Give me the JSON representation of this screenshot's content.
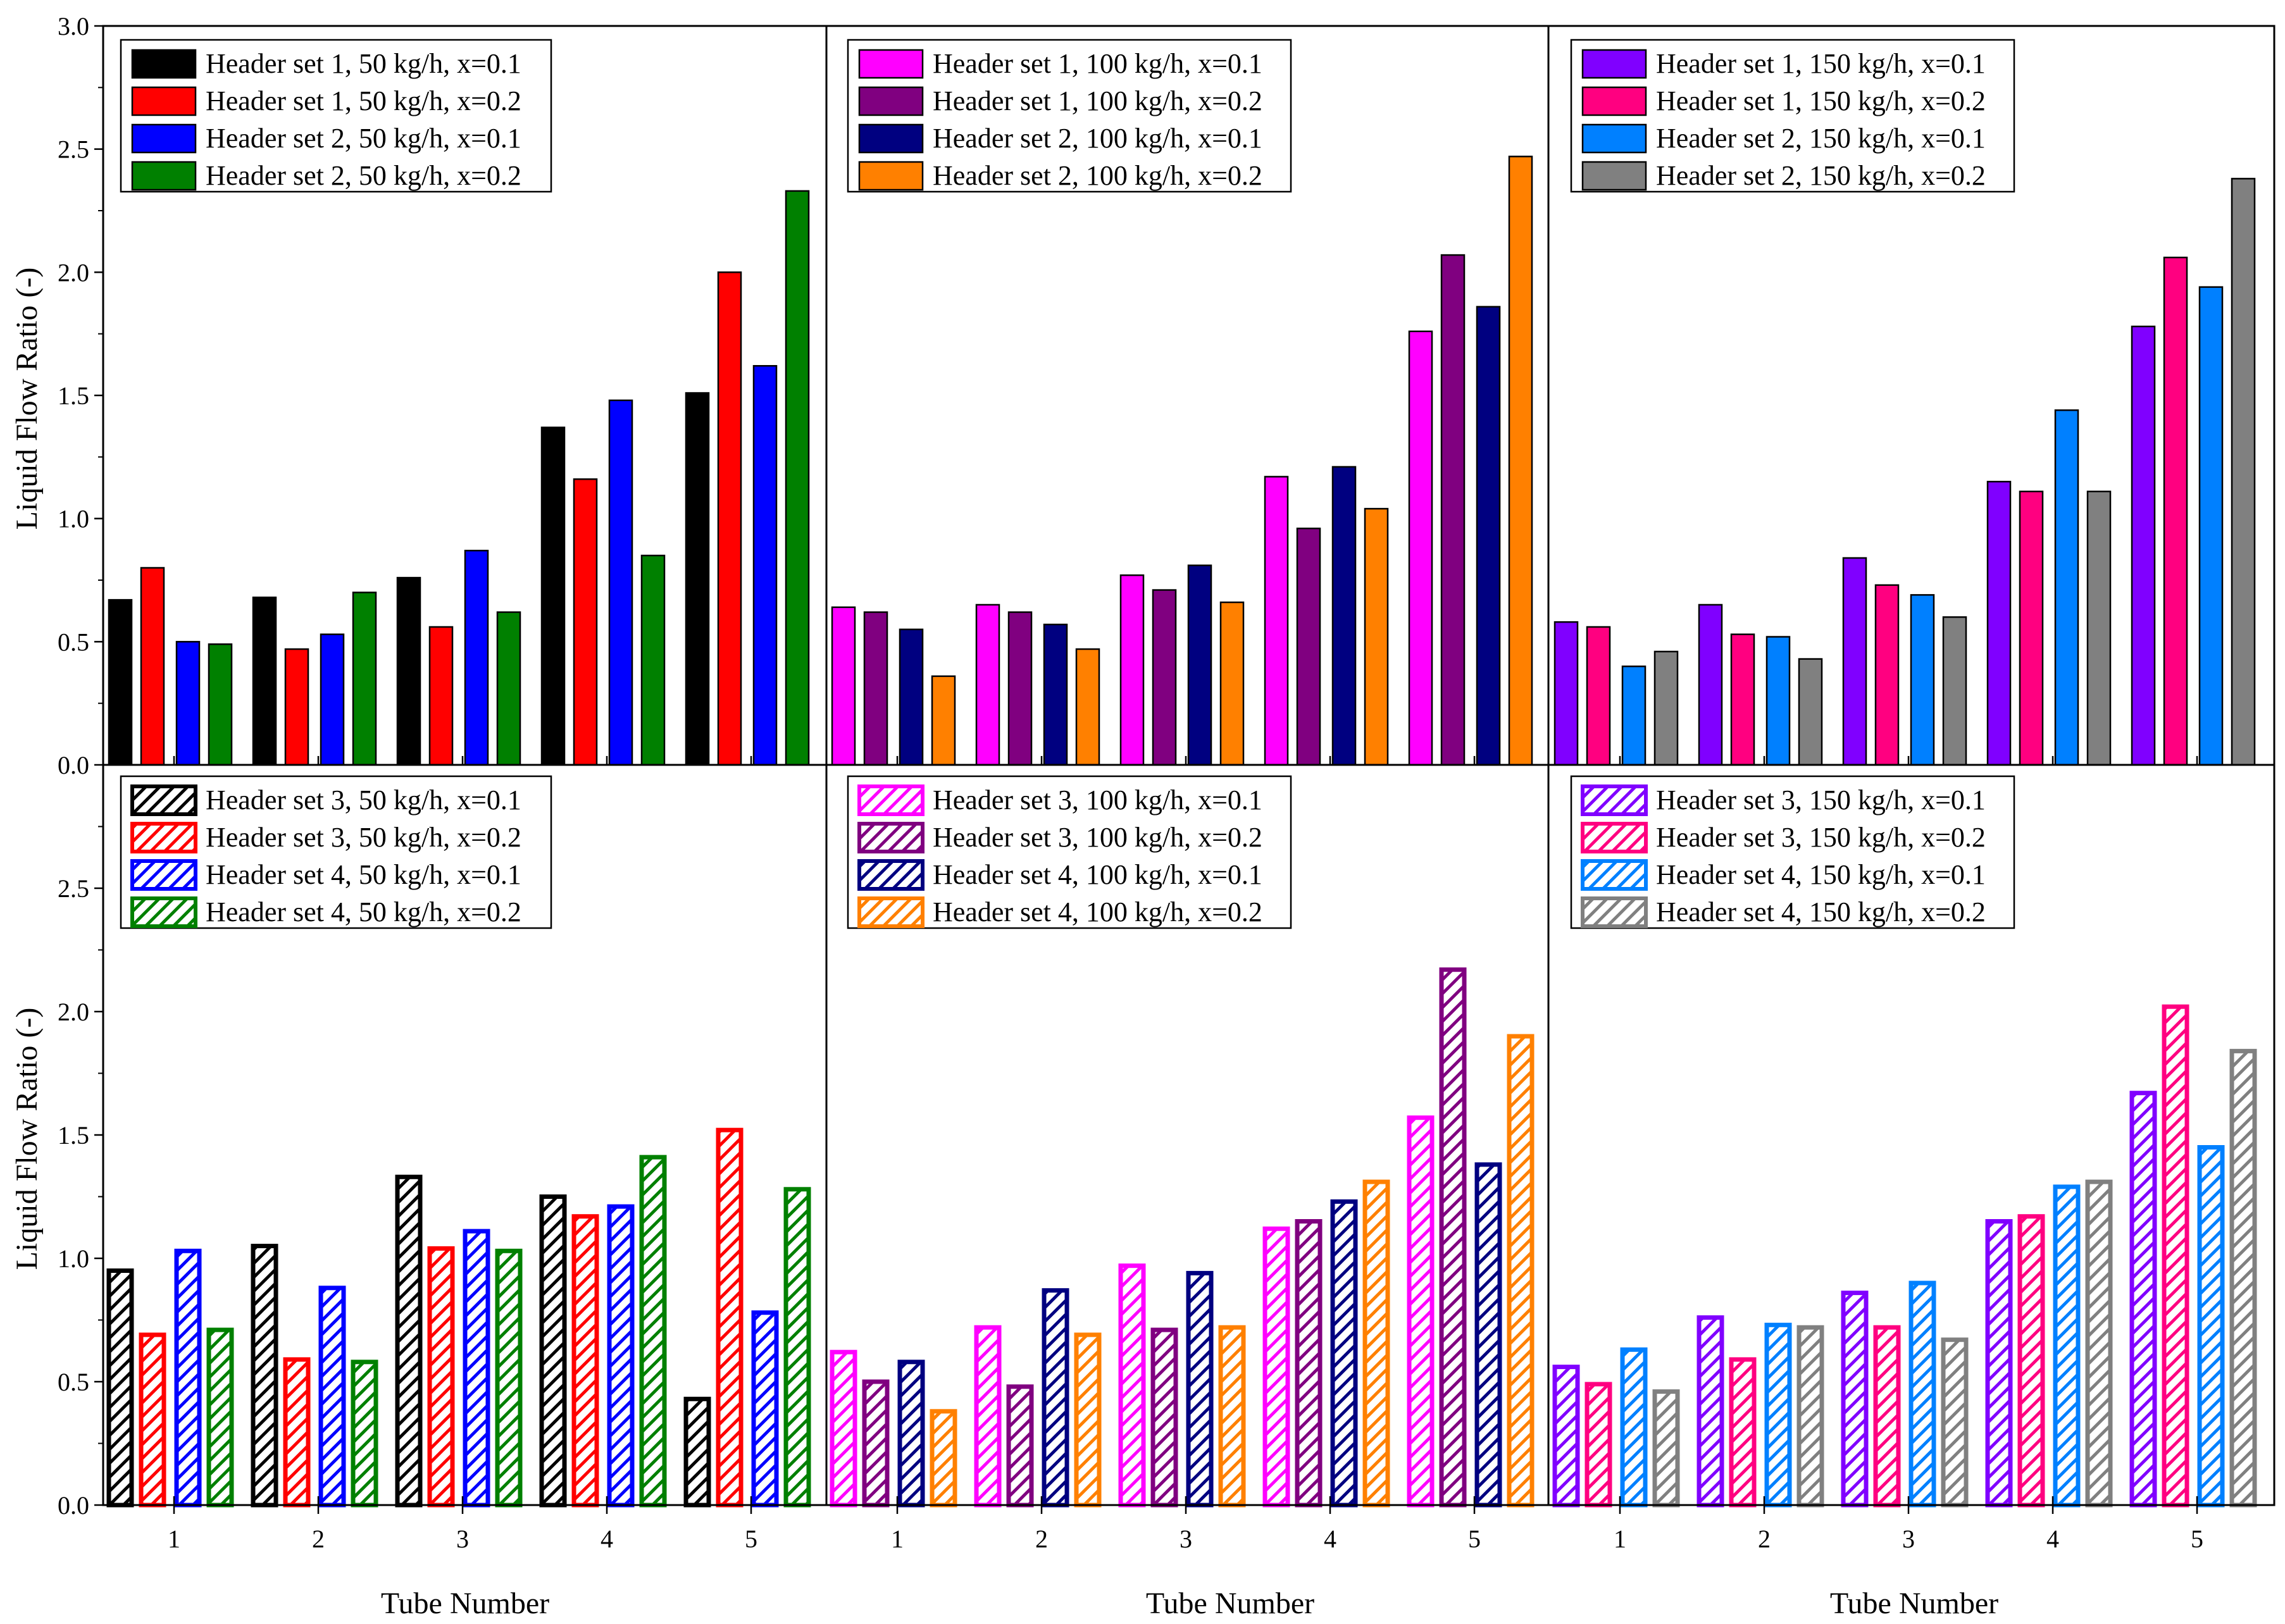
{
  "figure": {
    "ylabel": "Liquid Flow Ratio (-)",
    "xlabel": "Tube Number",
    "categories": [
      "1",
      "2",
      "3",
      "4",
      "5"
    ],
    "yticks": [
      "0.0",
      "0.5",
      "1.0",
      "1.5",
      "2.0",
      "2.5",
      "3.0"
    ],
    "yticks_bottom": [
      "0.0",
      "0.5",
      "1.0",
      "1.5",
      "2.0",
      "2.5"
    ]
  },
  "chart_data": [
    {
      "type": "bar",
      "row": "top",
      "col": 1,
      "pattern": "solid",
      "xlabel": "",
      "ylabel": "Liquid Flow Ratio (-)",
      "ylim": [
        0,
        3.0
      ],
      "categories": [
        "1",
        "2",
        "3",
        "4",
        "5"
      ],
      "series": [
        {
          "name": "Header set 1, 50 kg/h, x=0.1",
          "color": "#000000",
          "values": [
            0.67,
            0.68,
            0.76,
            1.37,
            1.51
          ]
        },
        {
          "name": "Header set 1, 50 kg/h, x=0.2",
          "color": "#ff0000",
          "values": [
            0.8,
            0.47,
            0.56,
            1.16,
            2.0
          ]
        },
        {
          "name": "Header set 2, 50 kg/h, x=0.1",
          "color": "#0000ff",
          "values": [
            0.5,
            0.53,
            0.87,
            1.48,
            1.62
          ]
        },
        {
          "name": "Header set 2, 50 kg/h, x=0.2",
          "color": "#008000",
          "values": [
            0.49,
            0.7,
            0.62,
            0.85,
            2.33
          ]
        }
      ]
    },
    {
      "type": "bar",
      "row": "top",
      "col": 2,
      "pattern": "solid",
      "xlabel": "",
      "ylabel": "",
      "ylim": [
        0,
        3.0
      ],
      "categories": [
        "1",
        "2",
        "3",
        "4",
        "5"
      ],
      "series": [
        {
          "name": "Header set 1, 100 kg/h, x=0.1",
          "color": "#ff00ff",
          "values": [
            0.64,
            0.65,
            0.77,
            1.17,
            1.76
          ]
        },
        {
          "name": "Header set 1, 100 kg/h, x=0.2",
          "color": "#800080",
          "values": [
            0.62,
            0.62,
            0.71,
            0.96,
            2.07
          ]
        },
        {
          "name": "Header set 2, 100 kg/h, x=0.1",
          "color": "#000080",
          "values": [
            0.55,
            0.57,
            0.81,
            1.21,
            1.86
          ]
        },
        {
          "name": "Header set 2, 100 kg/h, x=0.2",
          "color": "#ff8000",
          "values": [
            0.36,
            0.47,
            0.66,
            1.04,
            2.47
          ]
        }
      ]
    },
    {
      "type": "bar",
      "row": "top",
      "col": 3,
      "pattern": "solid",
      "xlabel": "",
      "ylabel": "",
      "ylim": [
        0,
        3.0
      ],
      "categories": [
        "1",
        "2",
        "3",
        "4",
        "5"
      ],
      "series": [
        {
          "name": "Header set 1, 150 kg/h, x=0.1",
          "color": "#8000ff",
          "values": [
            0.58,
            0.65,
            0.84,
            1.15,
            1.78
          ]
        },
        {
          "name": "Header set 1, 150 kg/h, x=0.2",
          "color": "#ff0080",
          "values": [
            0.56,
            0.53,
            0.73,
            1.11,
            2.06
          ]
        },
        {
          "name": "Header set 2, 150 kg/h, x=0.1",
          "color": "#0080ff",
          "values": [
            0.4,
            0.52,
            0.69,
            1.44,
            1.94
          ]
        },
        {
          "name": "Header set 2, 150 kg/h, x=0.2",
          "color": "#808080",
          "values": [
            0.46,
            0.43,
            0.6,
            1.11,
            2.38
          ]
        }
      ]
    },
    {
      "type": "bar",
      "row": "bottom",
      "col": 1,
      "pattern": "hatched",
      "xlabel": "Tube Number",
      "ylabel": "Liquid Flow Ratio (-)",
      "ylim": [
        0,
        3.0
      ],
      "categories": [
        "1",
        "2",
        "3",
        "4",
        "5"
      ],
      "series": [
        {
          "name": "Header set 3, 50 kg/h, x=0.1",
          "color": "#000000",
          "values": [
            0.95,
            1.05,
            1.33,
            1.25,
            0.43
          ]
        },
        {
          "name": "Header set 3, 50 kg/h, x=0.2",
          "color": "#ff0000",
          "values": [
            0.69,
            0.59,
            1.04,
            1.17,
            1.52
          ]
        },
        {
          "name": "Header set 4, 50 kg/h, x=0.1",
          "color": "#0000ff",
          "values": [
            1.03,
            0.88,
            1.11,
            1.21,
            0.78
          ]
        },
        {
          "name": "Header set 4, 50 kg/h, x=0.2",
          "color": "#008000",
          "values": [
            0.71,
            0.58,
            1.03,
            1.41,
            1.28
          ]
        }
      ]
    },
    {
      "type": "bar",
      "row": "bottom",
      "col": 2,
      "pattern": "hatched",
      "xlabel": "Tube Number",
      "ylabel": "",
      "ylim": [
        0,
        3.0
      ],
      "categories": [
        "1",
        "2",
        "3",
        "4",
        "5"
      ],
      "series": [
        {
          "name": "Header set 3, 100 kg/h, x=0.1",
          "color": "#ff00ff",
          "values": [
            0.62,
            0.72,
            0.97,
            1.12,
            1.57
          ]
        },
        {
          "name": "Header set 3, 100 kg/h, x=0.2",
          "color": "#800080",
          "values": [
            0.5,
            0.48,
            0.71,
            1.15,
            2.17
          ]
        },
        {
          "name": "Header set 4, 100 kg/h, x=0.1",
          "color": "#000080",
          "values": [
            0.58,
            0.87,
            0.94,
            1.23,
            1.38
          ]
        },
        {
          "name": "Header set 4, 100 kg/h, x=0.2",
          "color": "#ff8000",
          "values": [
            0.38,
            0.69,
            0.72,
            1.31,
            1.9
          ]
        }
      ]
    },
    {
      "type": "bar",
      "row": "bottom",
      "col": 3,
      "pattern": "hatched",
      "xlabel": "Tube Number",
      "ylabel": "",
      "ylim": [
        0,
        3.0
      ],
      "categories": [
        "1",
        "2",
        "3",
        "4",
        "5"
      ],
      "series": [
        {
          "name": "Header set 3, 150 kg/h, x=0.1",
          "color": "#8000ff",
          "values": [
            0.56,
            0.76,
            0.86,
            1.15,
            1.67
          ]
        },
        {
          "name": "Header set 3, 150 kg/h, x=0.2",
          "color": "#ff0080",
          "values": [
            0.49,
            0.59,
            0.72,
            1.17,
            2.02
          ]
        },
        {
          "name": "Header set 4, 150 kg/h, x=0.1",
          "color": "#0080ff",
          "values": [
            0.63,
            0.73,
            0.9,
            1.29,
            1.45
          ]
        },
        {
          "name": "Header set 4, 150 kg/h, x=0.2",
          "color": "#808080",
          "values": [
            0.46,
            0.72,
            0.67,
            1.31,
            1.84
          ]
        }
      ]
    }
  ]
}
